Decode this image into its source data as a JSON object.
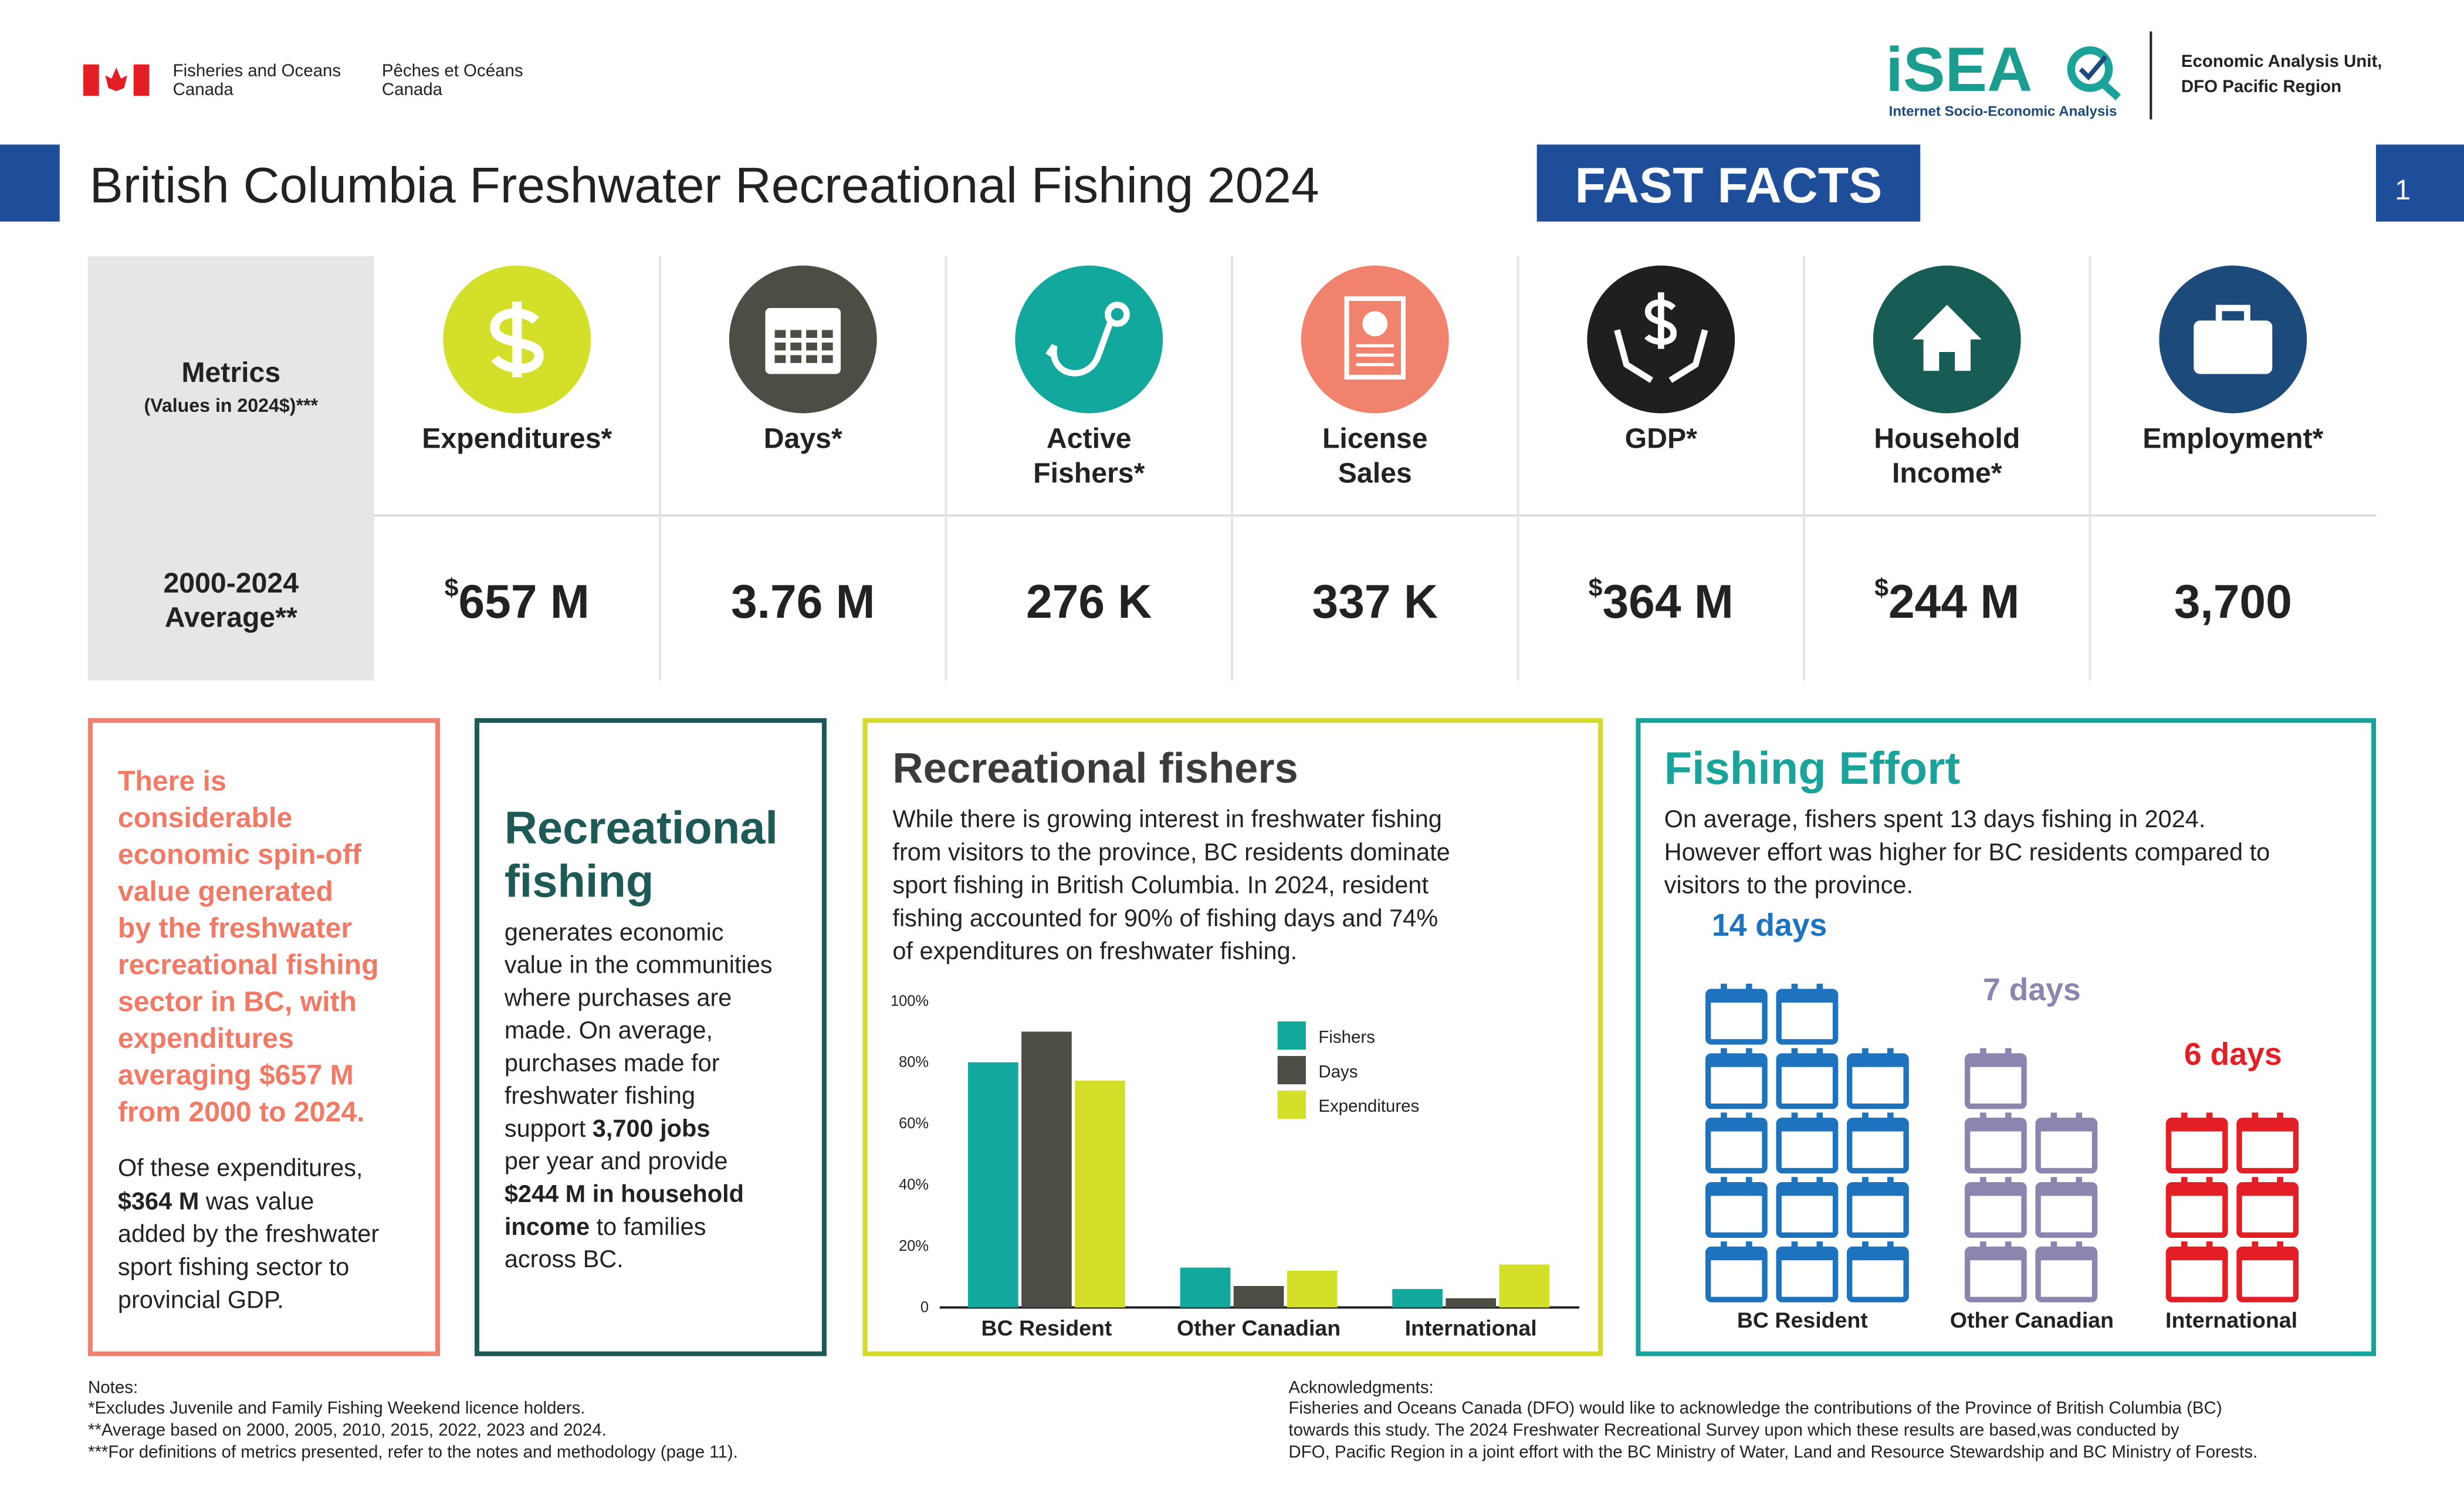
{
  "header": {
    "dept_en": [
      "Fisheries and Oceans",
      "Canada"
    ],
    "dept_fr": [
      "Pêches et Océans",
      "Canada"
    ],
    "logo": "iSEA",
    "logo_tagline": "Internet Socio-Economic Analysis",
    "unit": [
      "Economic Analysis Unit,",
      "DFO Pacific Region"
    ],
    "title": "British Columbia Freshwater Recreational Fishing 2024",
    "badge": "FAST FACTS",
    "page": "1"
  },
  "metrics": {
    "label": "Metrics",
    "sublabel": "(Values in 2024$)***",
    "row_label": [
      "2000-2024",
      "Average**"
    ],
    "items": [
      {
        "name": [
          "Expenditures*"
        ],
        "prefix": "$",
        "value": "657 M",
        "color": "#d4df2a"
      },
      {
        "name": [
          "Days*"
        ],
        "value": "3.76 M",
        "color": "#4d4d46"
      },
      {
        "name": [
          "Active",
          "Fishers*"
        ],
        "value": "276 K",
        "color": "#13a89e"
      },
      {
        "name": [
          "License",
          "Sales"
        ],
        "value": "337 K",
        "color": "#f0826e"
      },
      {
        "name": [
          "GDP*"
        ],
        "prefix": "$",
        "value": "364 M",
        "color": "#1f1f1f"
      },
      {
        "name": [
          "Household",
          "Income*"
        ],
        "prefix": "$",
        "value": "244 M",
        "color": "#175c55"
      },
      {
        "name": [
          "Employment*"
        ],
        "value": "3,700",
        "color": "#1c4a7a"
      }
    ]
  },
  "panels": {
    "spinoff": {
      "highlight": [
        "There is",
        "considerable",
        "economic spin-off",
        "value generated",
        "by the freshwater",
        "recreational fishing",
        "sector in BC, with",
        "expenditures",
        "averaging $657 M",
        "from 2000 to 2024."
      ],
      "body": [
        "Of these expenditures,",
        [
          {
            "text": "$364 M",
            "bold": true
          },
          " was value"
        ],
        "added by the freshwater",
        "sport fishing sector to",
        "provincial GDP."
      ]
    },
    "recreational": {
      "title": [
        "Recreational",
        "fishing"
      ],
      "body": [
        "generates economic",
        "value in the communities",
        "where purchases are",
        "made. On average,",
        "purchases made for",
        "freshwater fishing",
        [
          "support ",
          {
            "text": "3,700 jobs",
            "bold": true
          }
        ],
        "per year and provide",
        [
          {
            "text": "$244 M in household",
            "bold": true
          }
        ],
        [
          {
            "text": "income",
            "bold": true
          },
          " to families"
        ],
        "across BC."
      ]
    },
    "fishers": {
      "title": "Recreational fishers",
      "body": [
        "While there is growing interest in freshwater fishing",
        "from visitors to the province, BC residents dominate",
        "sport fishing in British Columbia. In 2024, resident",
        "fishing accounted for 90% of fishing days and 74%",
        "of expenditures on freshwater fishing."
      ]
    },
    "effort": {
      "title": "Fishing Effort",
      "body": [
        "On average, fishers spent 13 days fishing in 2024.",
        "However effort was higher for BC residents compared to",
        "visitors to the province."
      ]
    }
  },
  "chart_data": {
    "type": "bar",
    "categories": [
      "BC Resident",
      "Other Canadian",
      "International"
    ],
    "series": [
      {
        "name": "Fishers",
        "color": "#13a89e",
        "values": [
          80,
          13,
          6
        ]
      },
      {
        "name": "Days",
        "color": "#4d4d46",
        "values": [
          90,
          7,
          3
        ]
      },
      {
        "name": "Expenditures",
        "color": "#d4df2a",
        "values": [
          74,
          12,
          14
        ]
      }
    ],
    "ylim": [
      0,
      100
    ],
    "yticks": [
      0,
      {
        "value": 20,
        "label": "20%"
      },
      {
        "value": 40,
        "label": "40%"
      },
      {
        "value": 60,
        "label": "60%"
      },
      {
        "value": 80,
        "label": "80%"
      },
      {
        "value": 100,
        "label": "100%"
      }
    ],
    "grid": false,
    "legend": "upper right"
  },
  "effort": {
    "groups": [
      {
        "category": "BC Resident",
        "label": "14 days",
        "days": 14,
        "color": "#1e73be"
      },
      {
        "category": "Other Canadian",
        "label": "7 days",
        "days": 7,
        "color": "#8e84b0"
      },
      {
        "category": "International",
        "label": "6 days",
        "days": 6,
        "color": "#e31e24"
      }
    ]
  },
  "notes": {
    "title": "Notes:",
    "lines": [
      "*Excludes Juvenile and Family Fishing Weekend licence holders.",
      "**Average based on 2000, 2005, 2010, 2015, 2022, 2023 and 2024.",
      "***For definitions of metrics presented, refer to the notes and methodology (page 11)."
    ]
  },
  "acknowledgments": {
    "title": "Acknowledgments:",
    "lines": [
      "Fisheries and Oceans Canada (DFO) would like to acknowledge the contributions of the Province of British Columbia (BC)",
      "towards this study. The 2024 Freshwater Recreational Survey upon which these results are based,was conducted by",
      "DFO, Pacific Region in a joint effort with the BC Ministry of Water, Land and Resource Stewardship and BC Ministry of Forests."
    ]
  }
}
